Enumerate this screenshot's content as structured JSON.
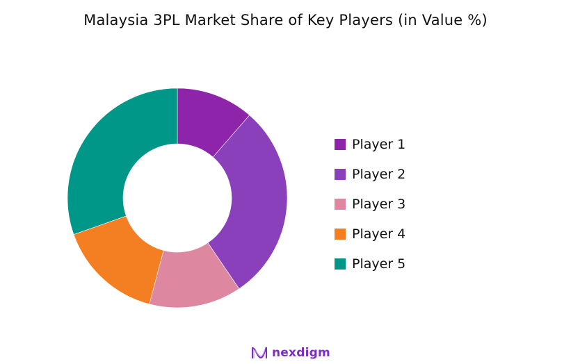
{
  "title": "Malaysia 3PL Market Share of Key Players (in Value %)",
  "chart_data": {
    "type": "pie",
    "subtype": "donut",
    "title": "Malaysia 3PL Market Share of Key Players (in Value %)",
    "categories": [
      "Player 1",
      "Player 2",
      "Player 3",
      "Player 4",
      "Player 5"
    ],
    "values": [
      11.4,
      29.1,
      13.6,
      15.5,
      30.4
    ],
    "colors": [
      "#8e24aa",
      "#8a3fbb",
      "#de87a0",
      "#f47f22",
      "#009688"
    ],
    "start_angle": "top (12 o'clock), clockwise",
    "legend_position": "right",
    "data_labels": false
  },
  "legend": {
    "items": [
      {
        "label": "Player 1",
        "color": "#8e24aa"
      },
      {
        "label": "Player 2",
        "color": "#8a3fbb"
      },
      {
        "label": "Player 3",
        "color": "#de87a0"
      },
      {
        "label": "Player 4",
        "color": "#f47f22"
      },
      {
        "label": "Player 5",
        "color": "#009688"
      }
    ]
  },
  "footer": {
    "logo_text": "nexdigm",
    "logo_color": "#7b2fbe"
  }
}
